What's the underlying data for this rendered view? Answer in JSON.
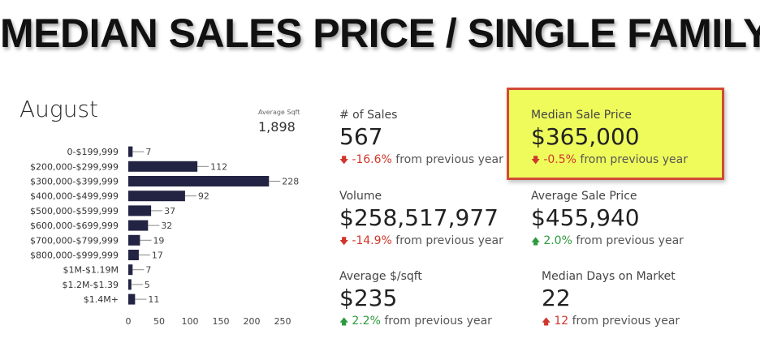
{
  "headline": "MEDIAN SALES PRICE / SINGLE FAMILY",
  "month": "August",
  "avg_sqft": {
    "label": "Average Sqft",
    "value": "1,898"
  },
  "colors": {
    "bar": "#232443",
    "down": "#d0372c",
    "up": "#2e9a3e",
    "highlight": "#eefb5b",
    "highlight_border": "#d24a36"
  },
  "metrics": {
    "sales": {
      "label": "# of Sales",
      "value": "567",
      "direction": "down",
      "pct": "-16.6%",
      "suffix": "from previous year"
    },
    "median_price": {
      "label": "Median Sale Price",
      "value": "$365,000",
      "direction": "down",
      "pct": "-0.5%",
      "suffix": "from previous year"
    },
    "volume": {
      "label": "Volume",
      "value": "$258,517,977",
      "direction": "down",
      "pct": "-14.9%",
      "suffix": "from previous year"
    },
    "avg_price": {
      "label": "Average Sale Price",
      "value": "$455,940",
      "direction": "up",
      "pct": "2.0%",
      "suffix": "from previous year"
    },
    "avg_sqft_price": {
      "label": "Average $/sqft",
      "value": "$235",
      "direction": "up",
      "pct": "2.2%",
      "suffix": "from previous year"
    },
    "median_dom": {
      "label": "Median Days on Market",
      "value": "22",
      "direction": "up",
      "pct": "12",
      "suffix": "from previous year"
    }
  },
  "chart_data": {
    "type": "bar",
    "orientation": "horizontal",
    "categories": [
      "0-$199,999",
      "$200,000-$299,999",
      "$300,000-$399,999",
      "$400,000-$499,999",
      "$500,000-$599,999",
      "$600,000-$699,999",
      "$700,000-$799,999",
      "$800,000-$999,999",
      "$1M-$1.19M",
      "$1.2M-$1.39",
      "$1.4M+"
    ],
    "values": [
      7,
      112,
      228,
      92,
      37,
      32,
      19,
      17,
      7,
      5,
      11
    ],
    "xticks": [
      0,
      50,
      100,
      150,
      200,
      250
    ],
    "xlim": [
      0,
      250
    ],
    "grid": false
  }
}
